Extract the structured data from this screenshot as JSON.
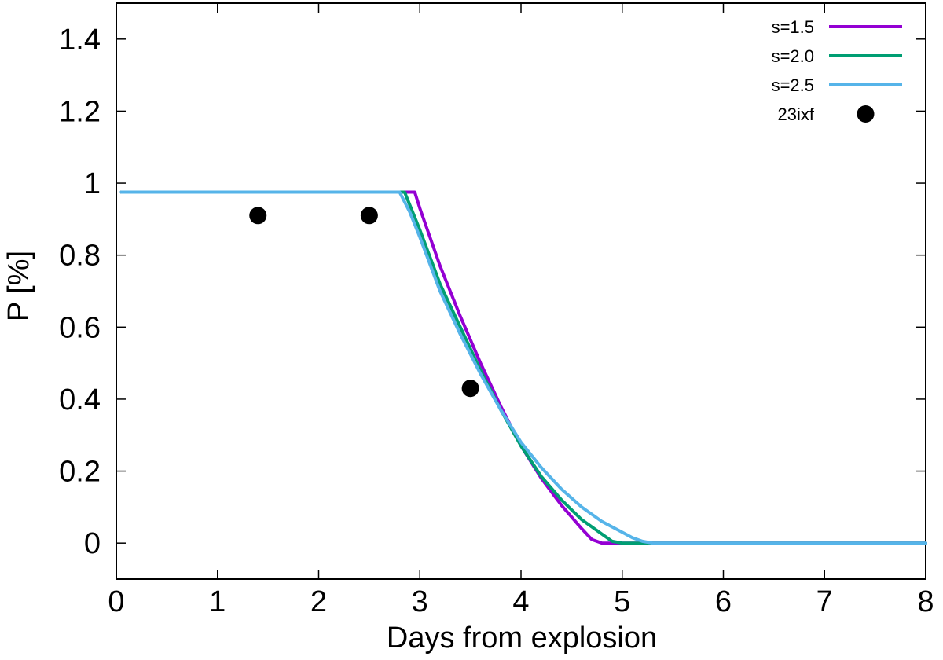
{
  "chart_data": {
    "type": "line",
    "xlabel": "Days from explosion",
    "ylabel": "P [%]",
    "xlim": [
      0,
      8
    ],
    "ylim": [
      -0.1,
      1.5
    ],
    "xticks": [
      0,
      1,
      2,
      3,
      4,
      5,
      6,
      7,
      8
    ],
    "yticks": [
      0,
      0.2,
      0.4,
      0.6,
      0.8,
      1,
      1.2,
      1.4
    ],
    "xtick_labels": [
      "0",
      "1",
      "2",
      "3",
      "4",
      "5",
      "6",
      "7",
      "8"
    ],
    "ytick_labels": [
      "0",
      "0.2",
      "0.4",
      "0.6",
      "0.8",
      "1",
      "1.2",
      "1.4"
    ],
    "grid": false,
    "legend_position": "top-right",
    "series": [
      {
        "name": "s=1.5",
        "color": "#9400d3",
        "kind": "line",
        "x": [
          0.05,
          2.9,
          2.95,
          3.0,
          3.2,
          3.4,
          3.6,
          3.8,
          4.0,
          4.2,
          4.4,
          4.6,
          4.7,
          4.8,
          8.0
        ],
        "y": [
          0.975,
          0.975,
          0.975,
          0.93,
          0.77,
          0.63,
          0.5,
          0.38,
          0.27,
          0.18,
          0.105,
          0.04,
          0.01,
          0.0,
          0.0
        ]
      },
      {
        "name": "s=2.0",
        "color": "#009e73",
        "kind": "line",
        "x": [
          0.05,
          2.8,
          2.85,
          2.9,
          3.0,
          3.2,
          3.4,
          3.6,
          3.8,
          4.0,
          4.2,
          4.4,
          4.6,
          4.8,
          4.9,
          5.0,
          8.0
        ],
        "y": [
          0.975,
          0.975,
          0.975,
          0.94,
          0.87,
          0.72,
          0.6,
          0.48,
          0.37,
          0.27,
          0.185,
          0.12,
          0.065,
          0.025,
          0.005,
          0.0,
          0.0
        ]
      },
      {
        "name": "s=2.5",
        "color": "#56b4e9",
        "kind": "line",
        "x": [
          0.05,
          2.75,
          2.8,
          2.9,
          3.0,
          3.2,
          3.4,
          3.6,
          3.8,
          4.0,
          4.2,
          4.4,
          4.6,
          4.8,
          5.0,
          5.1,
          5.2,
          5.3,
          8.0
        ],
        "y": [
          0.975,
          0.975,
          0.975,
          0.92,
          0.85,
          0.7,
          0.58,
          0.47,
          0.37,
          0.28,
          0.21,
          0.15,
          0.1,
          0.06,
          0.03,
          0.015,
          0.005,
          0.0,
          0.0
        ]
      },
      {
        "name": "23ixf",
        "color": "#000000",
        "kind": "points",
        "x": [
          1.4,
          2.5,
          3.5
        ],
        "y": [
          0.91,
          0.91,
          0.43
        ]
      }
    ]
  }
}
